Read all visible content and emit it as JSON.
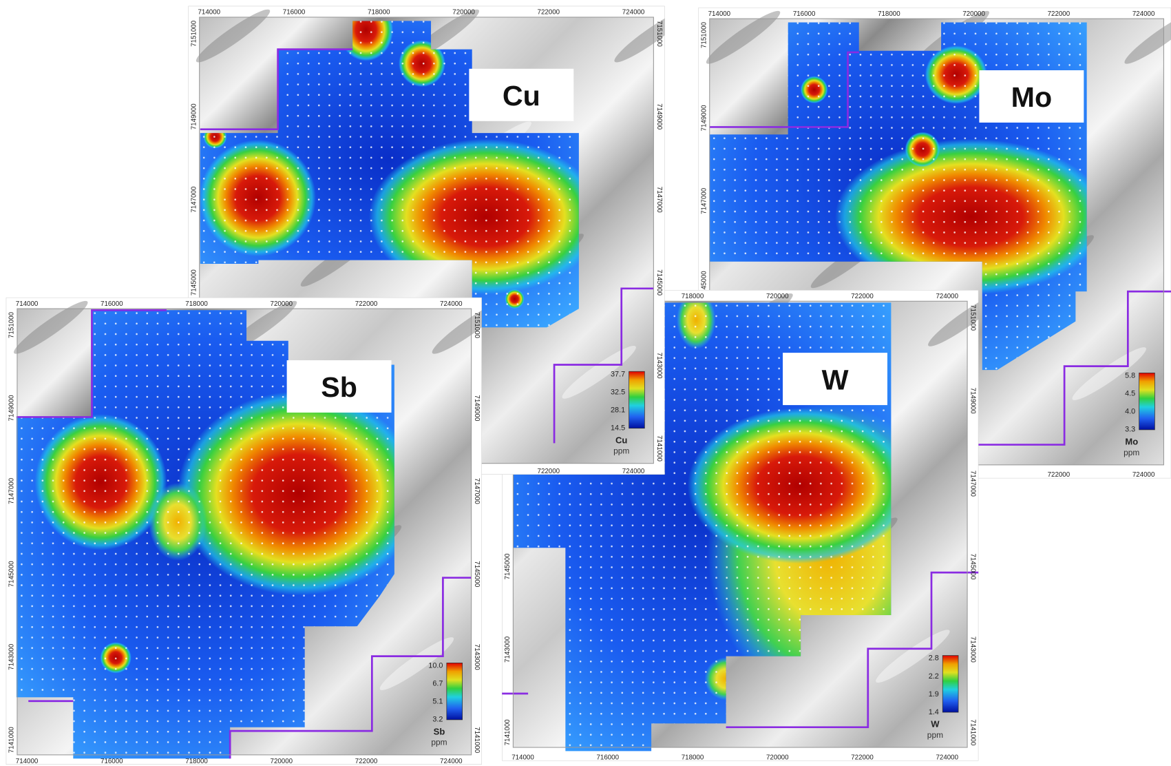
{
  "panels": [
    {
      "element": "Cu",
      "unit": "ppm",
      "legend": [
        "37.7",
        "32.5",
        "28.1",
        "14.5"
      ],
      "top_ticks": [
        714000,
        716000,
        718000,
        720000,
        722000,
        724000
      ],
      "right_ticks": [
        7151000,
        7149000,
        7147000,
        7145000,
        7143000,
        7141000
      ],
      "left_ticks": [
        7151000,
        7149000,
        7147000,
        7145000
      ],
      "bottom_ticks": [
        722000,
        724000
      ]
    },
    {
      "element": "Mo",
      "unit": "ppm",
      "legend": [
        "5.8",
        "4.5",
        "4.0",
        "3.3"
      ],
      "top_ticks": [
        714000,
        716000,
        718000,
        720000,
        722000,
        724000
      ],
      "right_ticks": [],
      "left_ticks": [
        7151000,
        7149000,
        7147000,
        7145000
      ],
      "bottom_ticks": [
        722000,
        724000
      ]
    },
    {
      "element": "Sb",
      "unit": "ppm",
      "legend": [
        "10.0",
        "6.7",
        "5.1",
        "3.2"
      ],
      "top_ticks": [
        714000,
        716000,
        718000,
        720000,
        722000,
        724000
      ],
      "right_ticks": [
        7151000,
        7149000,
        7147000,
        7145000,
        7143000,
        7141000
      ],
      "left_ticks": [
        7151000,
        7149000,
        7147000,
        7145000,
        7143000,
        7141000
      ],
      "bottom_ticks": [
        714000,
        716000,
        718000,
        720000,
        722000,
        724000
      ]
    },
    {
      "element": "W",
      "unit": "ppm",
      "legend": [
        "2.8",
        "2.2",
        "1.9",
        "1.4"
      ],
      "top_ticks": [
        718000,
        720000,
        722000,
        724000
      ],
      "right_ticks": [
        7151000,
        7149000,
        7147000,
        7145000,
        7143000,
        7141000
      ],
      "left_ticks": [
        7145000,
        7143000,
        7141000
      ],
      "bottom_ticks": [
        714000,
        716000,
        718000,
        720000,
        722000,
        724000
      ]
    }
  ]
}
